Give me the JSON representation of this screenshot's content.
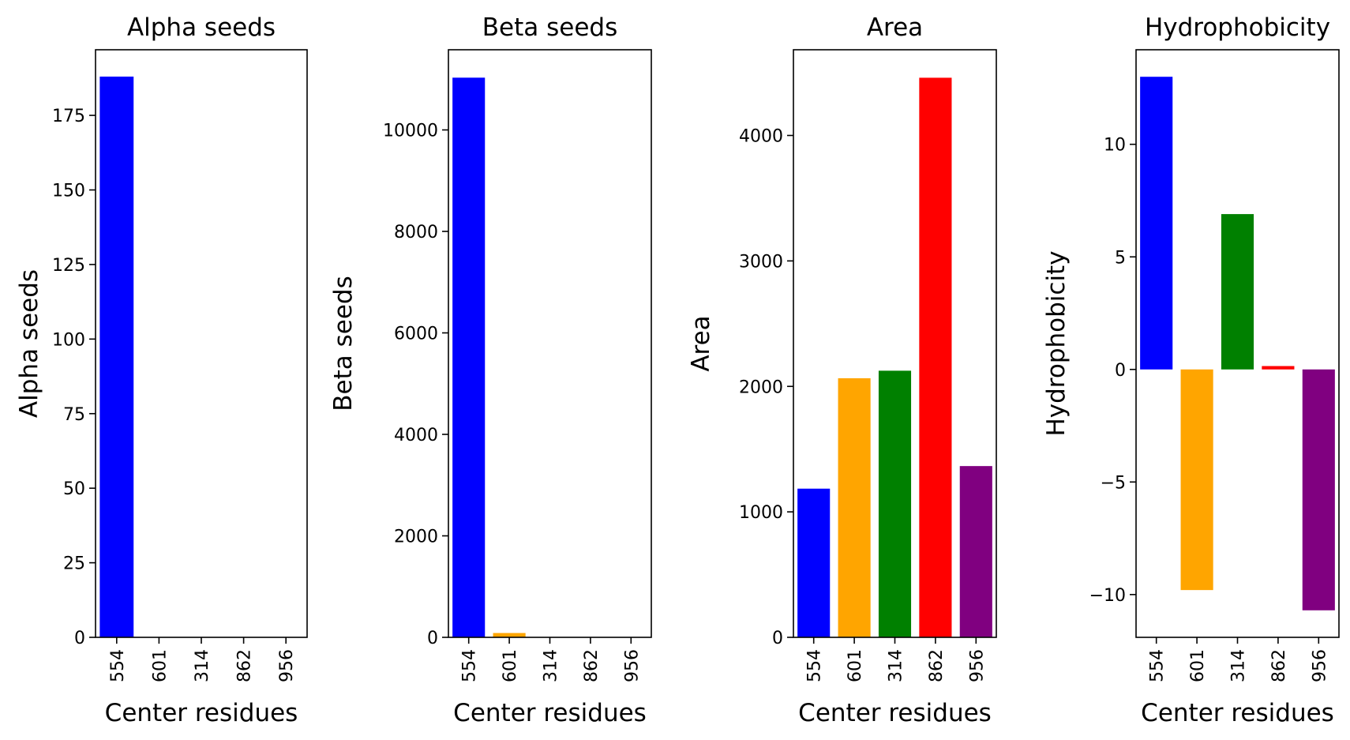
{
  "chart_data": [
    {
      "type": "bar",
      "title": "Alpha seeds",
      "xlabel": "Center residues",
      "ylabel": "Alpha seeds",
      "categories": [
        "554",
        "601",
        "314",
        "862",
        "956"
      ],
      "values": [
        188,
        0,
        0,
        0,
        0
      ],
      "colors": [
        "#0000ff",
        "#ffa500",
        "#008000",
        "#ff0000",
        "#800080"
      ],
      "ylim": [
        0,
        197
      ],
      "yticks": [
        0,
        25,
        50,
        75,
        100,
        125,
        150,
        175
      ],
      "ytick_labels": [
        "0",
        "25",
        "50",
        "75",
        "100",
        "125",
        "150",
        "175"
      ],
      "grid": false
    },
    {
      "type": "bar",
      "title": "Beta seeds",
      "xlabel": "Center residues",
      "ylabel": "Beta seeds",
      "categories": [
        "554",
        "601",
        "314",
        "862",
        "956"
      ],
      "values": [
        11030,
        85,
        0,
        0,
        0
      ],
      "colors": [
        "#0000ff",
        "#ffa500",
        "#008000",
        "#ff0000",
        "#800080"
      ],
      "ylim": [
        0,
        11580
      ],
      "yticks": [
        0,
        2000,
        4000,
        6000,
        8000,
        10000
      ],
      "ytick_labels": [
        "0",
        "2000",
        "4000",
        "6000",
        "8000",
        "10000"
      ],
      "grid": false
    },
    {
      "type": "bar",
      "title": "Area",
      "xlabel": "Center residues",
      "ylabel": "Area",
      "categories": [
        "554",
        "601",
        "314",
        "862",
        "956"
      ],
      "values": [
        1185,
        2065,
        2125,
        4460,
        1365
      ],
      "colors": [
        "#0000ff",
        "#ffa500",
        "#008000",
        "#ff0000",
        "#800080"
      ],
      "ylim": [
        0,
        4683
      ],
      "yticks": [
        0,
        1000,
        2000,
        3000,
        4000
      ],
      "ytick_labels": [
        "0",
        "1000",
        "2000",
        "3000",
        "4000"
      ],
      "grid": false
    },
    {
      "type": "bar",
      "title": "Hydrophobicity",
      "xlabel": "Center residues",
      "ylabel": "Hydrophobicity",
      "categories": [
        "554",
        "601",
        "314",
        "862",
        "956"
      ],
      "values": [
        13.0,
        -9.8,
        6.9,
        0.15,
        -10.7
      ],
      "colors": [
        "#0000ff",
        "#ffa500",
        "#008000",
        "#ff0000",
        "#800080"
      ],
      "ylim": [
        -11.9,
        14.2
      ],
      "yticks": [
        -10,
        -5,
        0,
        5,
        10
      ],
      "ytick_labels": [
        "−10",
        "−5",
        "0",
        "5",
        "10"
      ],
      "grid": false
    }
  ]
}
